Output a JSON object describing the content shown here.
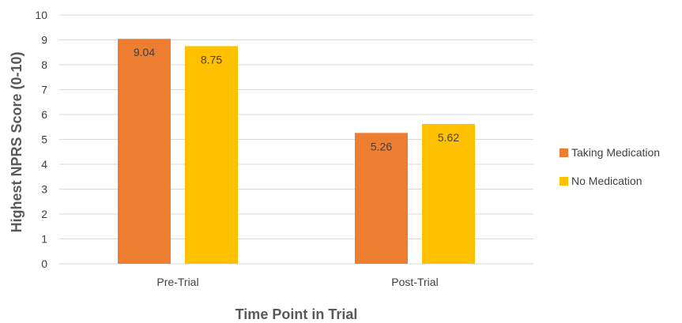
{
  "chart_data": {
    "type": "bar",
    "categories": [
      "Pre-Trial",
      "Post-Trial"
    ],
    "series": [
      {
        "name": "Taking Medication",
        "values": [
          9.04,
          5.26
        ],
        "color": "#ED7D31"
      },
      {
        "name": "No Medication",
        "values": [
          8.75,
          5.62
        ],
        "color": "#FFC000"
      }
    ],
    "data_labels": [
      [
        "9.04",
        "5.26"
      ],
      [
        "8.75",
        "5.62"
      ]
    ],
    "ylim": [
      0,
      10
    ],
    "yticks": [
      "0",
      "1",
      "2",
      "3",
      "4",
      "5",
      "6",
      "7",
      "8",
      "9",
      "10"
    ],
    "xlabel": "Time Point in Trial",
    "ylabel": "Highest NPRS Score (0-10)",
    "grid": true,
    "legend_position": "right",
    "gridline_color": "#D9D9D9"
  }
}
